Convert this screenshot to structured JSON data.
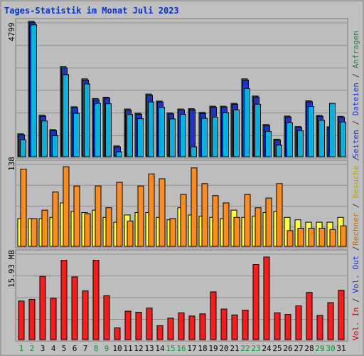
{
  "title": "Tages-Statistik im Monat Juli 2023",
  "colors": {
    "background": "#c0c0c0",
    "panel": "#bdbdbd",
    "grid": "#8f8f8f",
    "title": "#0033cc",
    "weekend_label": "#009933",
    "weekday_label": "#000000",
    "anfragen": "#2e7d52",
    "dateien": "#1a33cc",
    "seiten": "#00b4e0",
    "besuche": "#d6c600",
    "rechner": "#e87500",
    "volout": "#1a33cc",
    "volin": "#d00000"
  },
  "right_legend": {
    "anfragen": "Anfragen",
    "dateien": "Dateien",
    "seiten": "Seiten",
    "besuche": "Besuche",
    "rechner": "Rechner",
    "volout": "Vol. Out",
    "volin": "Vol. In",
    "sep": "/"
  },
  "chart_data": [
    {
      "type": "bar",
      "panel": "top",
      "max_label": "4799",
      "ylim": [
        0,
        4799
      ],
      "categories": [
        "1",
        "2",
        "3",
        "4",
        "5",
        "6",
        "7",
        "8",
        "9",
        "10",
        "11",
        "12",
        "13",
        "14",
        "15",
        "16",
        "17",
        "18",
        "19",
        "20",
        "21",
        "22",
        "23",
        "24",
        "25",
        "26",
        "27",
        "28",
        "29",
        "30",
        "31"
      ],
      "weekend": [
        1,
        2,
        8,
        9,
        15,
        16,
        22,
        23,
        29,
        30
      ],
      "series": [
        {
          "name": "Anfragen",
          "color": "#2e7d52",
          "values": [
            810,
            4799,
            1470,
            960,
            3190,
            1770,
            2760,
            2060,
            2110,
            380,
            1690,
            1540,
            2220,
            1970,
            1550,
            1690,
            1700,
            1570,
            1790,
            1790,
            1890,
            2760,
            2150,
            1140,
            620,
            1440,
            1070,
            1980,
            1460,
            1060,
            1430
          ]
        },
        {
          "name": "Dateien",
          "color": "#1a33cc",
          "values": [
            800,
            4780,
            1460,
            950,
            3170,
            1760,
            2740,
            2040,
            2100,
            370,
            1680,
            1530,
            2200,
            1960,
            1540,
            1680,
            1690,
            1560,
            1780,
            1780,
            1880,
            2740,
            2140,
            1130,
            610,
            1430,
            1060,
            1970,
            1450,
            1050,
            1420
          ]
        },
        {
          "name": "Seiten",
          "color": "#00b4e0",
          "values": [
            700,
            4780,
            1370,
            850,
            3010,
            1640,
            2680,
            1990,
            1980,
            270,
            1600,
            1450,
            2040,
            1850,
            1440,
            1600,
            450,
            1460,
            1500,
            1660,
            1760,
            2520,
            1960,
            1000,
            510,
            1300,
            1020,
            1880,
            1390,
            1990,
            1330
          ]
        }
      ]
    },
    {
      "type": "bar",
      "panel": "middle",
      "max_label": "138",
      "ylim": [
        0,
        138
      ],
      "categories": [
        "1",
        "2",
        "3",
        "4",
        "5",
        "6",
        "7",
        "8",
        "9",
        "10",
        "11",
        "12",
        "13",
        "14",
        "15",
        "16",
        "17",
        "18",
        "19",
        "20",
        "21",
        "22",
        "23",
        "24",
        "25",
        "26",
        "27",
        "28",
        "29",
        "30",
        "31"
      ],
      "series": [
        {
          "name": "Besuche",
          "color": "#d6c600",
          "values": [
            46,
            46,
            46,
            48,
            72,
            58,
            56,
            60,
            48,
            40,
            52,
            56,
            56,
            48,
            44,
            64,
            52,
            50,
            48,
            46,
            60,
            48,
            50,
            56,
            58,
            48,
            44,
            40,
            40,
            40,
            48
          ]
        },
        {
          "name": "Rechner",
          "color": "#e87500",
          "values": [
            128,
            46,
            60,
            90,
            132,
            100,
            54,
            100,
            64,
            106,
            42,
            100,
            120,
            112,
            46,
            86,
            130,
            104,
            84,
            72,
            48,
            86,
            64,
            80,
            104,
            26,
            30,
            30,
            30,
            28,
            34
          ]
        }
      ]
    },
    {
      "type": "bar",
      "panel": "bottom",
      "max_label": "15.93 MB",
      "ylim": [
        0,
        15.93
      ],
      "categories": [
        "1",
        "2",
        "3",
        "4",
        "5",
        "6",
        "7",
        "8",
        "9",
        "10",
        "11",
        "12",
        "13",
        "14",
        "15",
        "16",
        "17",
        "18",
        "19",
        "20",
        "21",
        "22",
        "23",
        "24",
        "25",
        "26",
        "27",
        "28",
        "29",
        "30",
        "31"
      ],
      "series": [
        {
          "name": "Vol. Out",
          "color": "#1a33cc",
          "values": [
            0,
            0,
            0,
            0,
            0,
            0,
            0,
            0,
            0,
            0,
            0,
            0,
            0,
            0,
            0,
            0,
            0,
            0,
            0,
            0,
            0,
            0,
            0,
            0,
            0,
            0,
            0,
            0,
            0,
            0,
            0
          ]
        },
        {
          "name": "Vol. In",
          "color": "#d00000",
          "values": [
            7.2,
            7.5,
            11.8,
            7.7,
            14.8,
            11.7,
            9.1,
            14.8,
            8.2,
            2.2,
            5.3,
            5.1,
            5.9,
            2.6,
            4.0,
            5.0,
            4.4,
            4.8,
            8.9,
            5.7,
            4.6,
            5.5,
            14.0,
            15.4,
            5.0,
            4.7,
            6.3,
            8.8,
            4.5,
            6.9,
            9.2
          ]
        }
      ]
    }
  ]
}
